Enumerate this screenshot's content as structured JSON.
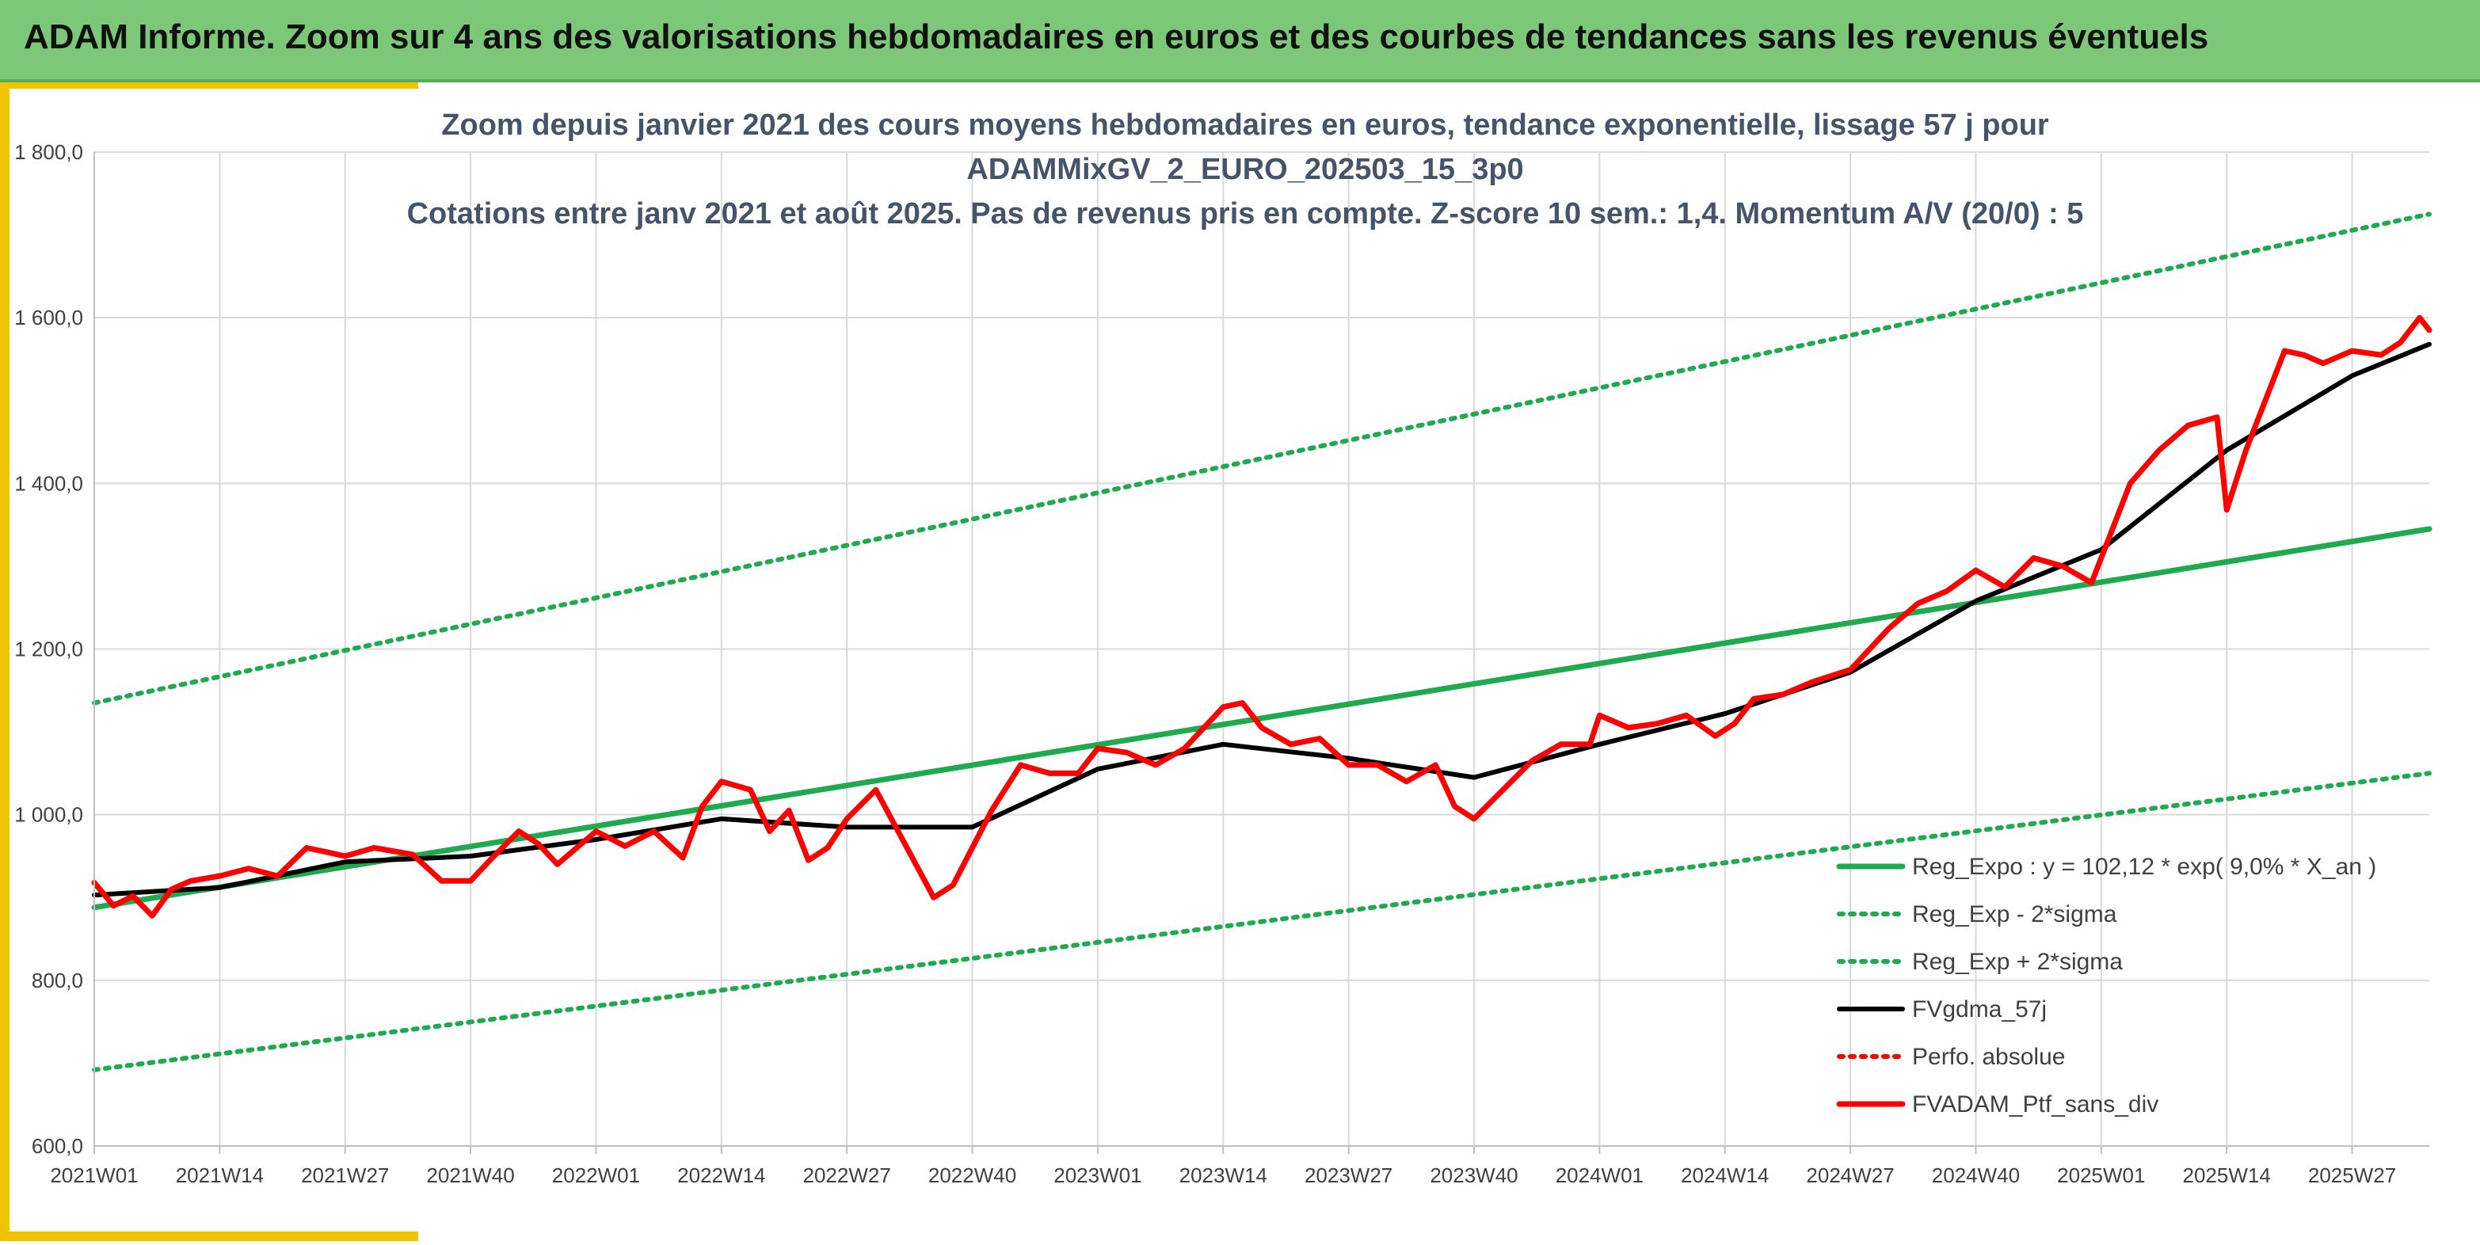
{
  "header": {
    "title": "ADAM Informe. Zoom sur 4 ans des valorisations hebdomadaires en euros et des courbes de tendances sans les revenus éventuels"
  },
  "colors": {
    "header_bg": "#7dc878",
    "accent": "#f2c400",
    "trend": "#1faa50",
    "smoothed": "#000000",
    "portfolio": "#ff0000"
  },
  "chart_data": {
    "type": "line",
    "title_lines": [
      "Zoom depuis janvier 2021 des cours moyens hebdomadaires en euros, tendance exponentielle, lissage 57 j pour",
      "ADAMMixGV_2_EURO_202503_15_3p0",
      "Cotations entre janv 2021 et août 2025. Pas de revenus pris en compte. Z-score 10 sem.: 1,4. Momentum A/V (20/0) : 5"
    ],
    "x_ticks": [
      "2021W01",
      "2021W14",
      "2021W27",
      "2021W40",
      "2022W01",
      "2022W14",
      "2022W27",
      "2022W40",
      "2023W01",
      "2023W14",
      "2023W27",
      "2023W40",
      "2024W01",
      "2024W14",
      "2024W27",
      "2024W40",
      "2025W01",
      "2025W14",
      "2025W27"
    ],
    "y_ticks": [
      "600,0",
      "800,0",
      "1 000,0",
      "1 200,0",
      "1 400,0",
      "1 600,0",
      "1 800,0"
    ],
    "ylim": [
      600,
      1800
    ],
    "grid": true,
    "legend_position": "bottom-right",
    "series": [
      {
        "name": "Reg_Expo : y = 102,12 * exp( 9,0% *  X_an )",
        "style": "solid-green",
        "x": [
          "2021W01",
          "2025W35"
        ],
        "values": [
          888,
          1345
        ]
      },
      {
        "name": "Reg_Exp - 2*sigma",
        "style": "dotted-green",
        "x": [
          "2021W01",
          "2025W35"
        ],
        "values": [
          692,
          1050
        ]
      },
      {
        "name": "Reg_Exp + 2*sigma",
        "style": "dotted-green",
        "x": [
          "2021W01",
          "2025W35"
        ],
        "values": [
          1135,
          1725
        ]
      },
      {
        "name": "FVgdma_57j",
        "style": "solid-black",
        "x": [
          "2021W01",
          "2021W14",
          "2021W27",
          "2021W40",
          "2022W01",
          "2022W14",
          "2022W27",
          "2022W40",
          "2023W01",
          "2023W14",
          "2023W27",
          "2023W40",
          "2024W01",
          "2024W14",
          "2024W27",
          "2024W40",
          "2025W01",
          "2025W14",
          "2025W27",
          "2025W35"
        ],
        "values": [
          903,
          912,
          943,
          950,
          970,
          995,
          985,
          985,
          1055,
          1085,
          1068,
          1045,
          1085,
          1122,
          1172,
          1258,
          1320,
          1440,
          1530,
          1568
        ]
      },
      {
        "name": "Perfo. absolue",
        "style": "dotted-red",
        "x": [],
        "values": []
      },
      {
        "name": "FVADAM_Ptf_sans_div",
        "style": "solid-red",
        "x": [
          "2021W01",
          "2021W03",
          "2021W05",
          "2021W07",
          "2021W09",
          "2021W11",
          "2021W14",
          "2021W17",
          "2021W20",
          "2021W23",
          "2021W25",
          "2021W27",
          "2021W30",
          "2021W34",
          "2021W37",
          "2021W40",
          "2021W42",
          "2021W45",
          "2021W47",
          "2021W49",
          "2022W01",
          "2022W04",
          "2022W07",
          "2022W10",
          "2022W12",
          "2022W14",
          "2022W17",
          "2022W19",
          "2022W21",
          "2022W23",
          "2022W25",
          "2022W27",
          "2022W30",
          "2022W33",
          "2022W36",
          "2022W38",
          "2022W40",
          "2022W42",
          "2022W45",
          "2022W48",
          "2022W51",
          "2023W01",
          "2023W04",
          "2023W07",
          "2023W10",
          "2023W14",
          "2023W16",
          "2023W18",
          "2023W21",
          "2023W24",
          "2023W27",
          "2023W30",
          "2023W33",
          "2023W36",
          "2023W38",
          "2023W40",
          "2023W43",
          "2023W46",
          "2023W49",
          "2023W52",
          "2024W01",
          "2024W04",
          "2024W07",
          "2024W10",
          "2024W13",
          "2024W15",
          "2024W17",
          "2024W20",
          "2024W23",
          "2024W27",
          "2024W29",
          "2024W31",
          "2024W34",
          "2024W37",
          "2024W40",
          "2024W43",
          "2024W46",
          "2024W49",
          "2024W52",
          "2025W01",
          "2025W04",
          "2025W07",
          "2025W10",
          "2025W13",
          "2025W14",
          "2025W16",
          "2025W18",
          "2025W20",
          "2025W22",
          "2025W24",
          "2025W27",
          "2025W30",
          "2025W32",
          "2025W34",
          "2025W35"
        ],
        "values": [
          918,
          890,
          902,
          878,
          910,
          920,
          926,
          935,
          926,
          960,
          955,
          950,
          960,
          952,
          920,
          920,
          945,
          980,
          965,
          940,
          980,
          962,
          980,
          948,
          1010,
          1040,
          1030,
          980,
          1005,
          945,
          960,
          995,
          1030,
          965,
          900,
          915,
          960,
          1005,
          1060,
          1050,
          1050,
          1080,
          1075,
          1060,
          1080,
          1130,
          1135,
          1105,
          1085,
          1092,
          1060,
          1060,
          1040,
          1060,
          1010,
          995,
          1030,
          1065,
          1085,
          1085,
          1120,
          1105,
          1110,
          1120,
          1095,
          1110,
          1140,
          1145,
          1160,
          1175,
          1200,
          1225,
          1255,
          1270,
          1295,
          1275,
          1310,
          1300,
          1280,
          1310,
          1400,
          1440,
          1470,
          1480,
          1368,
          1440,
          1500,
          1560,
          1555,
          1545,
          1560,
          1555,
          1570,
          1600,
          1585
        ]
      }
    ]
  }
}
